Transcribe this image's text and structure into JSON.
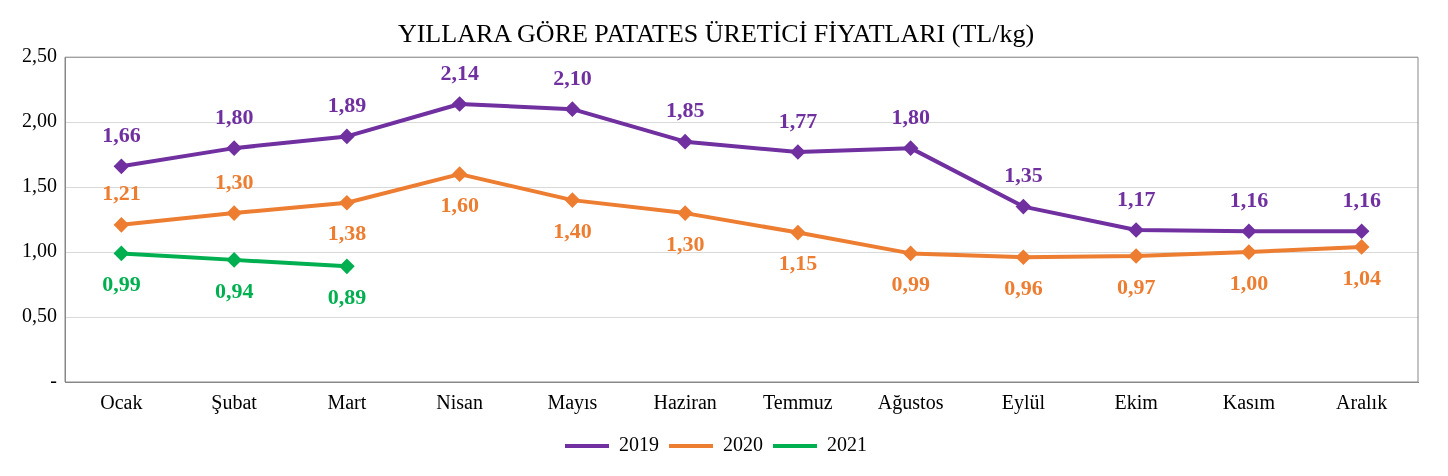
{
  "chart_data": {
    "type": "line",
    "title": "YILLARA GÖRE PATATES ÜRETİCİ FİYATLARI (TL/kg)",
    "categories": [
      "Ocak",
      "Şubat",
      "Mart",
      "Nisan",
      "Mayıs",
      "Haziran",
      "Temmuz",
      "Ağustos",
      "Eylül",
      "Ekim",
      "Kasım",
      "Aralık"
    ],
    "series": [
      {
        "name": "2019",
        "color": "#7030a0",
        "values": [
          1.66,
          1.8,
          1.89,
          2.14,
          2.1,
          1.85,
          1.77,
          1.8,
          1.35,
          1.17,
          1.16,
          1.16
        ],
        "value_labels": [
          "1,66",
          "1,80",
          "1,89",
          "2,14",
          "2,10",
          "1,85",
          "1,77",
          "1,80",
          "1,35",
          "1,17",
          "1,16",
          "1,16"
        ]
      },
      {
        "name": "2020",
        "color": "#ed7d31",
        "values": [
          1.21,
          1.3,
          1.38,
          1.6,
          1.4,
          1.3,
          1.15,
          0.99,
          0.96,
          0.97,
          1.0,
          1.04
        ],
        "value_labels": [
          "1,21",
          "1,30",
          "1,38",
          "1,60",
          "1,40",
          "1,30",
          "1,15",
          "0,99",
          "0,96",
          "0,97",
          "1,00",
          "1,04"
        ]
      },
      {
        "name": "2021",
        "color": "#00b050",
        "values": [
          0.99,
          0.94,
          0.89,
          null,
          null,
          null,
          null,
          null,
          null,
          null,
          null,
          null
        ],
        "value_labels": [
          "0,99",
          "0,94",
          "0,89",
          null,
          null,
          null,
          null,
          null,
          null,
          null,
          null,
          null
        ]
      }
    ],
    "ylim": [
      0,
      2.5
    ],
    "yticks": [
      {
        "value": 0,
        "label": "-"
      },
      {
        "value": 0.5,
        "label": "0,50"
      },
      {
        "value": 1,
        "label": "1,00"
      },
      {
        "value": 1.5,
        "label": "1,50"
      },
      {
        "value": 2,
        "label": "2,00"
      },
      {
        "value": 2.5,
        "label": "2,50"
      }
    ],
    "grid": "y",
    "legend": "bottom",
    "marker": "diamond",
    "line_style": "solid"
  }
}
